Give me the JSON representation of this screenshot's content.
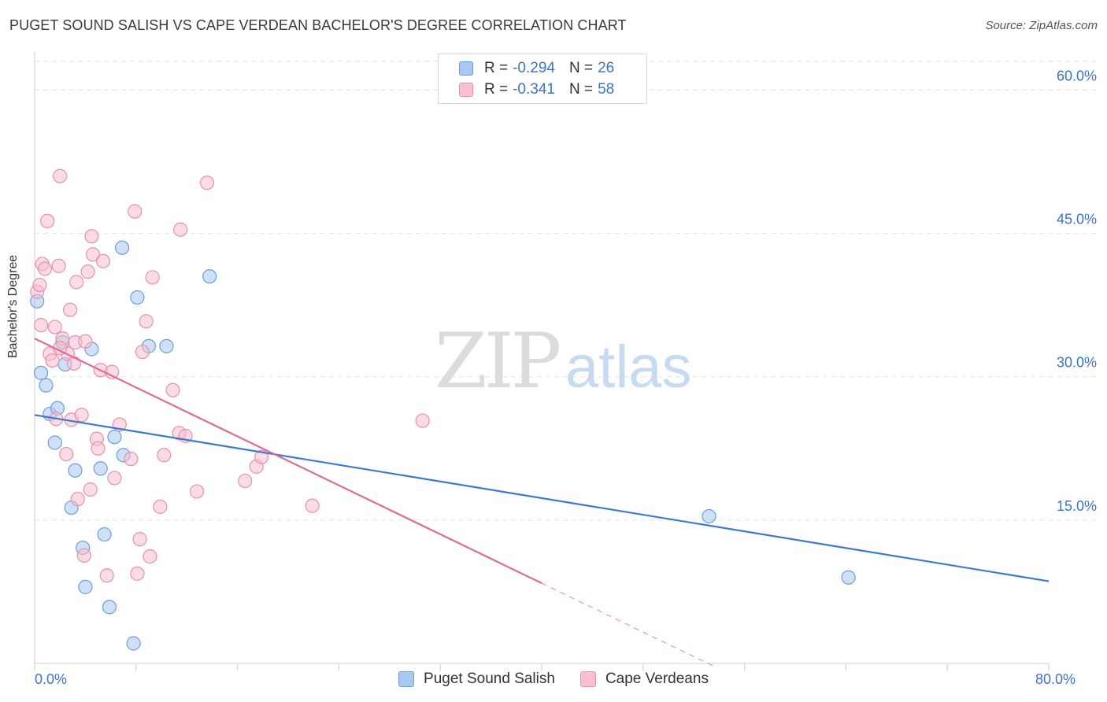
{
  "title": "PUGET SOUND SALISH VS CAPE VERDEAN BACHELOR'S DEGREE CORRELATION CHART",
  "source": "Source: ZipAtlas.com",
  "watermark": {
    "zip": "ZIP",
    "atlas": "atlas"
  },
  "stats": {
    "r_label": "R =",
    "n_label": "N =",
    "rows": [
      {
        "r": "-0.294",
        "n": "26",
        "fill": "#a8c8f0",
        "stroke": "#6a9de0"
      },
      {
        "r": "-0.341",
        "n": "58",
        "fill": "#f8c0d0",
        "stroke": "#e890ab"
      }
    ]
  },
  "legend": [
    {
      "label": "Puget Sound Salish",
      "fill": "#a8c8f0",
      "stroke": "#6a9de0"
    },
    {
      "label": "Cape Verdeans",
      "fill": "#f8c0d0",
      "stroke": "#e890ab"
    }
  ],
  "chart_data": {
    "type": "scatter",
    "title": "PUGET SOUND SALISH VS CAPE VERDEAN BACHELOR'S DEGREE CORRELATION CHART",
    "xlabel": "",
    "ylabel": "Bachelor's Degree",
    "xlim": [
      0,
      80
    ],
    "ylim": [
      0,
      63
    ],
    "x_tick_labels": [
      {
        "value": 0,
        "label": "0.0%"
      },
      {
        "value": 80,
        "label": "80.0%"
      }
    ],
    "y_tick_labels": [
      {
        "value": 15,
        "label": "15.0%"
      },
      {
        "value": 30,
        "label": "30.0%"
      },
      {
        "value": 45,
        "label": "45.0%"
      },
      {
        "value": 60,
        "label": "60.0%"
      }
    ],
    "series": [
      {
        "name": "Puget Sound Salish",
        "color": "#3b78d6",
        "fill": "#a8c8f0",
        "stroke": "#6a9de0",
        "trend": {
          "x0": 0,
          "y0": 26.0,
          "x1": 80,
          "y1": 8.6
        },
        "points": [
          [
            0.2,
            37.9
          ],
          [
            0.5,
            30.4
          ],
          [
            0.9,
            29.1
          ],
          [
            1.2,
            26.1
          ],
          [
            1.6,
            23.1
          ],
          [
            1.8,
            26.7
          ],
          [
            2.2,
            33.6
          ],
          [
            2.4,
            31.3
          ],
          [
            2.9,
            16.3
          ],
          [
            3.2,
            20.2
          ],
          [
            3.8,
            12.1
          ],
          [
            4.0,
            8.0
          ],
          [
            4.5,
            32.9
          ],
          [
            5.2,
            20.4
          ],
          [
            5.5,
            13.5
          ],
          [
            5.9,
            5.9
          ],
          [
            6.3,
            23.7
          ],
          [
            7.0,
            21.8
          ],
          [
            7.8,
            2.1
          ],
          [
            8.1,
            38.3
          ],
          [
            9.0,
            33.2
          ],
          [
            10.4,
            33.2
          ],
          [
            13.8,
            40.5
          ],
          [
            6.9,
            43.5
          ],
          [
            53.2,
            15.4
          ],
          [
            64.2,
            9.0
          ]
        ]
      },
      {
        "name": "Cape Verdeans",
        "color": "#e06a92",
        "fill": "#f8c0d0",
        "stroke": "#e890ab",
        "trend": {
          "x0": 0,
          "y0": 34.0,
          "x1": 40,
          "y1": 8.4,
          "dash_to_x": 53.5
        },
        "points": [
          [
            0.2,
            38.9
          ],
          [
            0.4,
            39.6
          ],
          [
            0.6,
            41.8
          ],
          [
            0.8,
            41.3
          ],
          [
            1.0,
            46.3
          ],
          [
            1.2,
            32.4
          ],
          [
            1.4,
            31.7
          ],
          [
            1.6,
            35.2
          ],
          [
            1.7,
            25.6
          ],
          [
            1.9,
            41.6
          ],
          [
            2.0,
            51.0
          ],
          [
            2.2,
            34.0
          ],
          [
            2.5,
            21.9
          ],
          [
            2.6,
            32.4
          ],
          [
            2.8,
            37.0
          ],
          [
            2.9,
            25.5
          ],
          [
            3.1,
            31.4
          ],
          [
            3.2,
            33.6
          ],
          [
            3.3,
            39.9
          ],
          [
            3.4,
            17.2
          ],
          [
            3.7,
            26.0
          ],
          [
            3.9,
            11.3
          ],
          [
            4.0,
            33.7
          ],
          [
            4.2,
            41.0
          ],
          [
            4.4,
            18.2
          ],
          [
            4.5,
            44.7
          ],
          [
            4.6,
            42.8
          ],
          [
            4.9,
            23.5
          ],
          [
            5.0,
            22.5
          ],
          [
            5.2,
            30.7
          ],
          [
            5.4,
            42.1
          ],
          [
            5.7,
            9.2
          ],
          [
            6.1,
            30.5
          ],
          [
            6.3,
            19.4
          ],
          [
            6.7,
            25.0
          ],
          [
            7.6,
            21.4
          ],
          [
            7.9,
            47.3
          ],
          [
            8.1,
            9.4
          ],
          [
            8.3,
            13.0
          ],
          [
            8.5,
            32.6
          ],
          [
            8.8,
            35.8
          ],
          [
            9.1,
            11.2
          ],
          [
            9.3,
            40.4
          ],
          [
            9.9,
            16.4
          ],
          [
            10.2,
            21.8
          ],
          [
            10.9,
            28.6
          ],
          [
            11.4,
            24.1
          ],
          [
            11.5,
            45.4
          ],
          [
            11.9,
            23.8
          ],
          [
            12.8,
            18.0
          ],
          [
            13.6,
            50.3
          ],
          [
            16.6,
            19.1
          ],
          [
            17.5,
            20.6
          ],
          [
            17.9,
            21.6
          ],
          [
            21.9,
            16.5
          ],
          [
            30.6,
            25.4
          ],
          [
            0.5,
            35.4
          ],
          [
            2.0,
            33.0
          ]
        ]
      }
    ]
  }
}
